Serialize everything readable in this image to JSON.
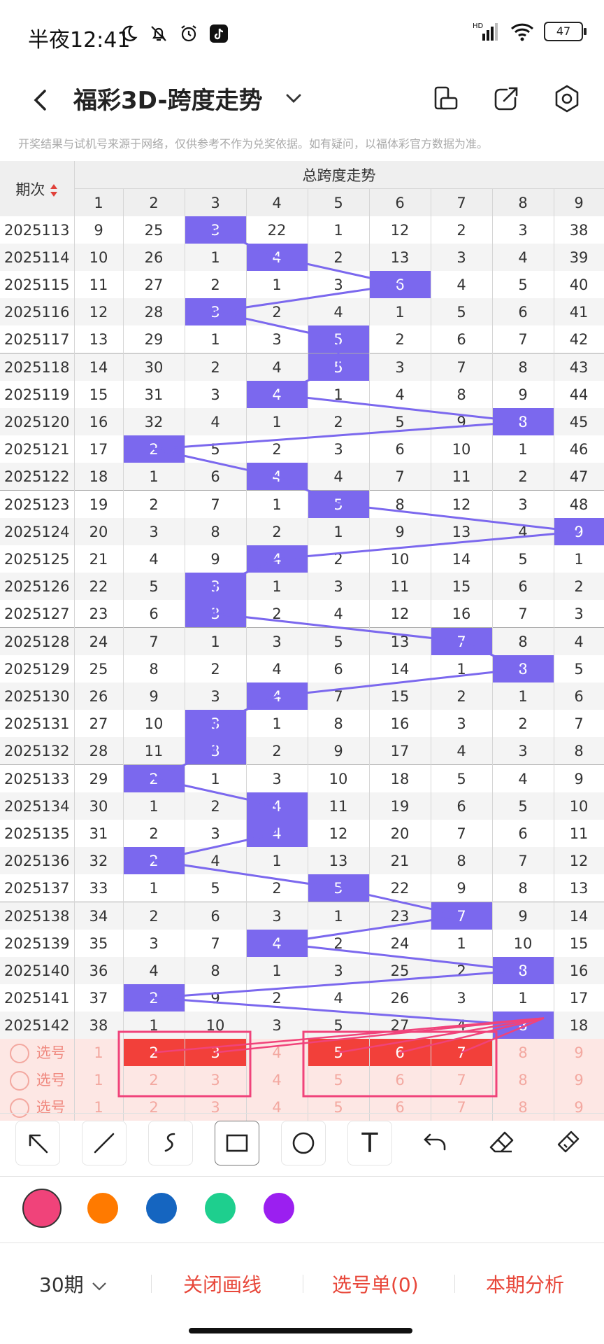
{
  "status_bar": {
    "time": "半夜12:41",
    "battery": "47",
    "hd": "HD"
  },
  "header": {
    "title": "福彩3D-跨度走势"
  },
  "notice": "开奖结果与试机号来源于网络，仅供参考不作为兑奖依据。如有疑问，以福体彩官方数据为准。",
  "table": {
    "period_header": "期次",
    "group_header": "总跨度走势",
    "columns": [
      "1",
      "2",
      "3",
      "4",
      "5",
      "6",
      "7",
      "8",
      "9"
    ],
    "rows": [
      {
        "period": "2025113",
        "cells": [
          "9",
          "25",
          "3",
          "22",
          "1",
          "12",
          "2",
          "3",
          "38"
        ],
        "hit": 3
      },
      {
        "period": "2025114",
        "cells": [
          "10",
          "26",
          "1",
          "4",
          "2",
          "13",
          "3",
          "4",
          "39"
        ],
        "hit": 4
      },
      {
        "period": "2025115",
        "cells": [
          "11",
          "27",
          "2",
          "1",
          "3",
          "6",
          "4",
          "5",
          "40"
        ],
        "hit": 6
      },
      {
        "period": "2025116",
        "cells": [
          "12",
          "28",
          "3",
          "2",
          "4",
          "1",
          "5",
          "6",
          "41"
        ],
        "hit": 3
      },
      {
        "period": "2025117",
        "cells": [
          "13",
          "29",
          "1",
          "3",
          "5",
          "2",
          "6",
          "7",
          "42"
        ],
        "hit": 5
      },
      {
        "period": "2025118",
        "cells": [
          "14",
          "30",
          "2",
          "4",
          "5",
          "3",
          "7",
          "8",
          "43"
        ],
        "hit": 5
      },
      {
        "period": "2025119",
        "cells": [
          "15",
          "31",
          "3",
          "4",
          "1",
          "4",
          "8",
          "9",
          "44"
        ],
        "hit": 4
      },
      {
        "period": "2025120",
        "cells": [
          "16",
          "32",
          "4",
          "1",
          "2",
          "5",
          "9",
          "8",
          "45"
        ],
        "hit": 8
      },
      {
        "period": "2025121",
        "cells": [
          "17",
          "2",
          "5",
          "2",
          "3",
          "6",
          "10",
          "1",
          "46"
        ],
        "hit": 2
      },
      {
        "period": "2025122",
        "cells": [
          "18",
          "1",
          "6",
          "4",
          "4",
          "7",
          "11",
          "2",
          "47"
        ],
        "hit": 4
      },
      {
        "period": "2025123",
        "cells": [
          "19",
          "2",
          "7",
          "1",
          "5",
          "8",
          "12",
          "3",
          "48"
        ],
        "hit": 5
      },
      {
        "period": "2025124",
        "cells": [
          "20",
          "3",
          "8",
          "2",
          "1",
          "9",
          "13",
          "4",
          "9"
        ],
        "hit": 9
      },
      {
        "period": "2025125",
        "cells": [
          "21",
          "4",
          "9",
          "4",
          "2",
          "10",
          "14",
          "5",
          "1"
        ],
        "hit": 4
      },
      {
        "period": "2025126",
        "cells": [
          "22",
          "5",
          "3",
          "1",
          "3",
          "11",
          "15",
          "6",
          "2"
        ],
        "hit": 3
      },
      {
        "period": "2025127",
        "cells": [
          "23",
          "6",
          "3",
          "2",
          "4",
          "12",
          "16",
          "7",
          "3"
        ],
        "hit": 3
      },
      {
        "period": "2025128",
        "cells": [
          "24",
          "7",
          "1",
          "3",
          "5",
          "13",
          "7",
          "8",
          "4"
        ],
        "hit": 7
      },
      {
        "period": "2025129",
        "cells": [
          "25",
          "8",
          "2",
          "4",
          "6",
          "14",
          "1",
          "8",
          "5"
        ],
        "hit": 8
      },
      {
        "period": "2025130",
        "cells": [
          "26",
          "9",
          "3",
          "4",
          "7",
          "15",
          "2",
          "1",
          "6"
        ],
        "hit": 4
      },
      {
        "period": "2025131",
        "cells": [
          "27",
          "10",
          "3",
          "1",
          "8",
          "16",
          "3",
          "2",
          "7"
        ],
        "hit": 3
      },
      {
        "period": "2025132",
        "cells": [
          "28",
          "11",
          "3",
          "2",
          "9",
          "17",
          "4",
          "3",
          "8"
        ],
        "hit": 3
      },
      {
        "period": "2025133",
        "cells": [
          "29",
          "2",
          "1",
          "3",
          "10",
          "18",
          "5",
          "4",
          "9"
        ],
        "hit": 2
      },
      {
        "period": "2025134",
        "cells": [
          "30",
          "1",
          "2",
          "4",
          "11",
          "19",
          "6",
          "5",
          "10"
        ],
        "hit": 4
      },
      {
        "period": "2025135",
        "cells": [
          "31",
          "2",
          "3",
          "4",
          "12",
          "20",
          "7",
          "6",
          "11"
        ],
        "hit": 4
      },
      {
        "period": "2025136",
        "cells": [
          "32",
          "2",
          "4",
          "1",
          "13",
          "21",
          "8",
          "7",
          "12"
        ],
        "hit": 2
      },
      {
        "period": "2025137",
        "cells": [
          "33",
          "1",
          "5",
          "2",
          "5",
          "22",
          "9",
          "8",
          "13"
        ],
        "hit": 5
      },
      {
        "period": "2025138",
        "cells": [
          "34",
          "2",
          "6",
          "3",
          "1",
          "23",
          "7",
          "9",
          "14"
        ],
        "hit": 7
      },
      {
        "period": "2025139",
        "cells": [
          "35",
          "3",
          "7",
          "4",
          "2",
          "24",
          "1",
          "10",
          "15"
        ],
        "hit": 4
      },
      {
        "period": "2025140",
        "cells": [
          "36",
          "4",
          "8",
          "1",
          "3",
          "25",
          "2",
          "8",
          "16"
        ],
        "hit": 8
      },
      {
        "period": "2025141",
        "cells": [
          "37",
          "2",
          "9",
          "2",
          "4",
          "26",
          "3",
          "1",
          "17"
        ],
        "hit": 2
      },
      {
        "period": "2025142",
        "cells": [
          "38",
          "1",
          "10",
          "3",
          "5",
          "27",
          "4",
          "8",
          "18"
        ],
        "hit": 8
      }
    ],
    "pick_label": "选号",
    "pick_rows": [
      {
        "cells": [
          "1",
          "2",
          "3",
          "4",
          "5",
          "6",
          "7",
          "8",
          "9"
        ],
        "selected": [
          2,
          3,
          5,
          6,
          7
        ]
      },
      {
        "cells": [
          "1",
          "2",
          "3",
          "4",
          "5",
          "6",
          "7",
          "8",
          "9"
        ],
        "selected": []
      },
      {
        "cells": [
          "1",
          "2",
          "3",
          "4",
          "5",
          "6",
          "7",
          "8",
          "9"
        ],
        "selected": []
      }
    ]
  },
  "colors": {
    "hit": "#7b68ee",
    "selected": "#f2403a",
    "pen": "#f0437a",
    "swatches": [
      "#f0437a",
      "#ff7a00",
      "#1565c0",
      "#1ecf8e",
      "#9b1ff0"
    ]
  },
  "toolbar": {
    "tools": [
      "arrow-tool",
      "line-tool",
      "freehand-tool",
      "rectangle-tool",
      "circle-tool",
      "text-tool",
      "undo-tool",
      "eraser-tool",
      "clear-tool"
    ],
    "text_glyph": "T"
  },
  "bottom": {
    "period_select": "30期",
    "close_lines": "关闭画线",
    "pick_list": "选号单(0)",
    "analysis": "本期分析"
  }
}
